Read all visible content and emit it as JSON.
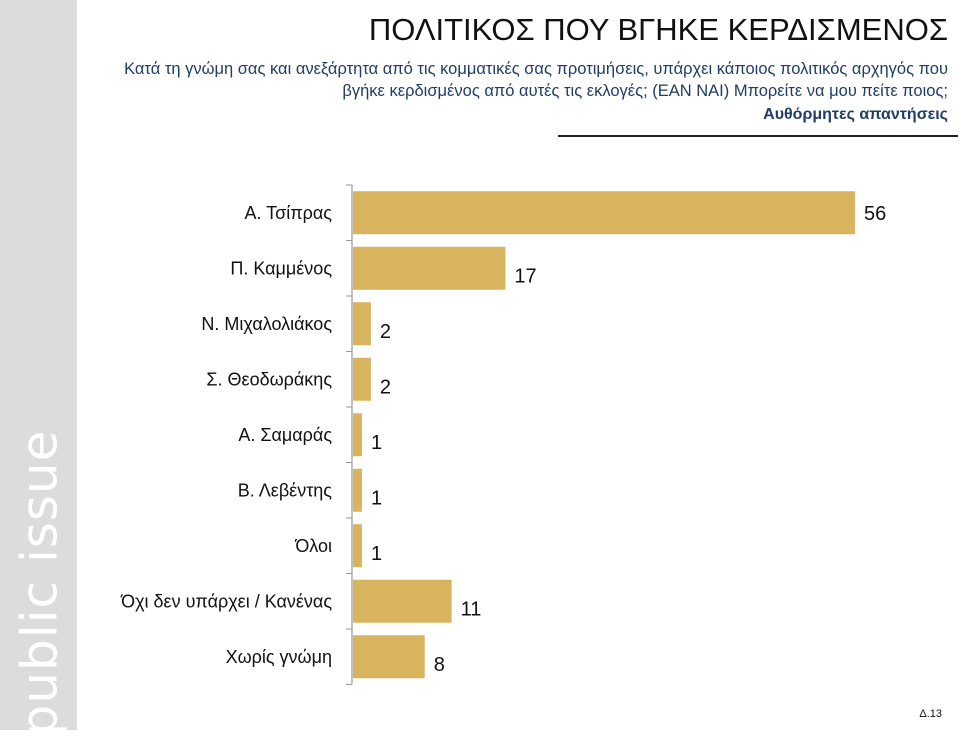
{
  "header": {
    "title": "ΠΟΛΙΤΙΚΟΣ ΠΟΥ ΒΓΗΚΕ ΚΕΡΔΙΣΜΕΝΟΣ",
    "question": "Κατά τη γνώμη σας και ανεξάρτητα από τις κομματικές σας προτιμήσεις, υπάρχει κάποιος πολιτικός αρχηγός που βγήκε κερδισμένος από αυτές τις εκλογές; (ΕΑΝ ΝΑΙ) Μπορείτε να μου πείτε ποιος;",
    "subtitle": "Αυθόρμητες απαντήσεις"
  },
  "brand": {
    "logo_text": "public issue"
  },
  "footer": {
    "page_code": "Δ.13"
  },
  "colors": {
    "bar": "#d8b45f",
    "side_band": "#dcdcdc",
    "question_text": "#1f3d66"
  },
  "chart_data": {
    "type": "bar",
    "orientation": "horizontal",
    "categories": [
      "Α. Τσίπρας",
      "Π. Καμμένος",
      "Ν. Μιχαλολιάκος",
      "Σ. Θεοδωράκης",
      "Α. Σαμαράς",
      "Β. Λεβέντης",
      "Όλοι",
      "Όχι δεν υπάρχει / Κανένας",
      "Χωρίς γνώμη"
    ],
    "values": [
      56,
      17,
      2,
      2,
      1,
      1,
      1,
      11,
      8
    ],
    "title": "ΠΟΛΙΤΙΚΟΣ ΠΟΥ ΒΓΗΚΕ ΚΕΡΔΙΣΜΕΝΟΣ",
    "xlabel": "",
    "ylabel": "",
    "xlim": [
      0,
      56
    ],
    "grid": false,
    "legend": "none"
  }
}
